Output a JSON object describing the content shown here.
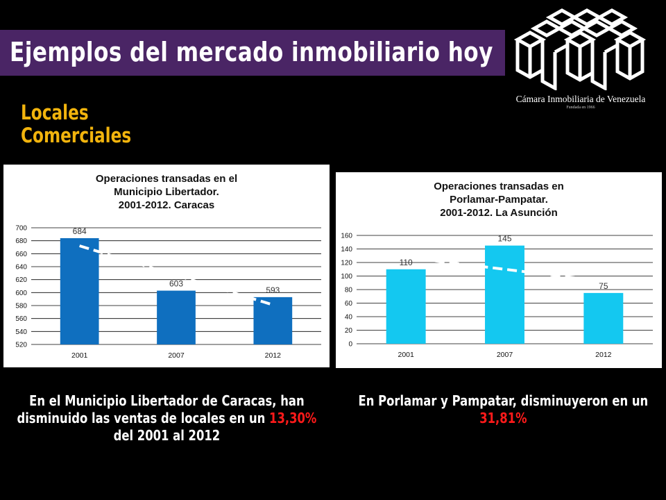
{
  "header": {
    "title": "Ejemplos del mercado inmobiliario hoy"
  },
  "logo": {
    "name": "Cámara Inmobiliaria de Venezuela",
    "founded": "Fundada en 1966"
  },
  "section": {
    "line1": "Locales",
    "line2": "Comerciales"
  },
  "colors": {
    "title_bar": "#4a2565",
    "subtitle": "#f2b40d",
    "bar_dark": "#0f6fbf",
    "bar_light": "#14c8f0",
    "highlight": "#ff1a1a"
  },
  "chart_data": [
    {
      "type": "bar",
      "title_lines": [
        "Operaciones transadas en el",
        "Municipio Libertador.",
        "2001-2012. Caracas"
      ],
      "categories": [
        "2001",
        "2007",
        "2012"
      ],
      "values": [
        684,
        603,
        593
      ],
      "data_labels": [
        "684",
        "603",
        "593"
      ],
      "ylim": [
        520,
        700
      ],
      "yticks": [
        520,
        540,
        560,
        580,
        600,
        620,
        640,
        660,
        680,
        700
      ],
      "trendline": "linear, dashed white",
      "grid": true
    },
    {
      "type": "bar",
      "title_lines": [
        "Operaciones transadas en",
        "Porlamar-Pampatar.",
        "2001-2012. La Asunción"
      ],
      "categories": [
        "2001",
        "2007",
        "2012"
      ],
      "values": [
        110,
        145,
        75
      ],
      "data_labels": [
        "110",
        "145",
        "75"
      ],
      "ylim": [
        0,
        160
      ],
      "yticks": [
        0,
        20,
        40,
        60,
        80,
        100,
        120,
        140,
        160
      ],
      "trendline": "linear, dashed white",
      "grid": true
    }
  ],
  "captions": {
    "left": {
      "before": "En el Municipio Libertador de Caracas, han disminuido las ventas de locales en un ",
      "highlight": "13,30%",
      "after": " del 2001 al 2012"
    },
    "right": {
      "before": "En Porlamar y Pampatar, disminuyeron en un ",
      "highlight": "31,81%",
      "after": ""
    }
  }
}
